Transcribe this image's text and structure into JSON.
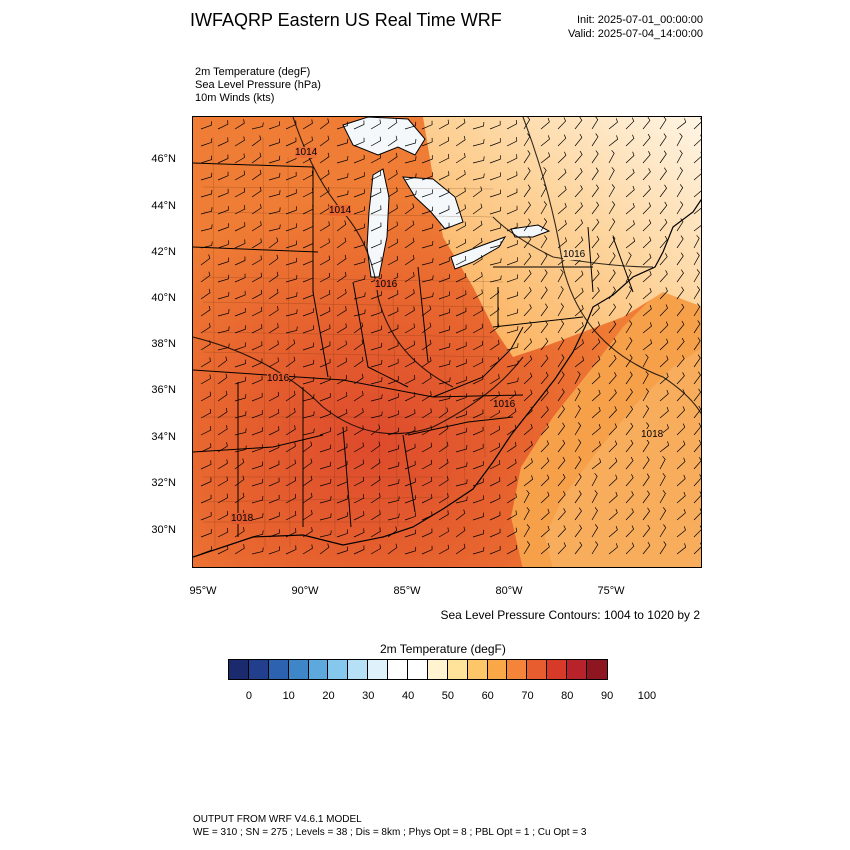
{
  "header": {
    "title": "IWFAQRP Eastern US Real Time WRF",
    "init": "Init: 2025-07-01_00:00:00",
    "valid": "Valid: 2025-07-04_14:00:00"
  },
  "fields": [
    "2m Temperature   (degF)",
    "Sea Level Pressure   (hPa)",
    "10m Winds   (kts)"
  ],
  "map": {
    "lat_labels": [
      "46°N",
      "44°N",
      "42°N",
      "40°N",
      "38°N",
      "36°N",
      "34°N",
      "32°N",
      "30°N"
    ],
    "lon_labels": [
      "95°W",
      "90°W",
      "85°W",
      "80°W",
      "75°W"
    ],
    "pressure_labels": [
      "1014",
      "1014",
      "1016",
      "1016",
      "1016",
      "1016",
      "1018",
      "1018"
    ],
    "slp_note": "Sea Level Pressure Contours: 1004 to 1020 by 2"
  },
  "colorbar": {
    "title": "2m Temperature  (degF)",
    "colors": [
      "#1a2a6c",
      "#213f8c",
      "#2c62b0",
      "#3f86c8",
      "#5da9de",
      "#86c7ee",
      "#b6e0f6",
      "#dff1fb",
      "#ffffff",
      "#ffffff",
      "#fff3d0",
      "#ffe39a",
      "#fdc769",
      "#f9a747",
      "#f3843a",
      "#e85d2f",
      "#d83a2a",
      "#b8222a",
      "#8e1620"
    ],
    "ticks": [
      "0",
      "10",
      "20",
      "30",
      "40",
      "50",
      "60",
      "70",
      "80",
      "90",
      "100"
    ]
  },
  "footer": {
    "line1": "OUTPUT FROM WRF V4.6.1 MODEL",
    "line2": "WE = 310 ; SN = 275 ; Levels = 38 ; Dis = 8km ; Phys Opt = 8 ; PBL Opt = 1 ; Cu Opt = 3"
  }
}
